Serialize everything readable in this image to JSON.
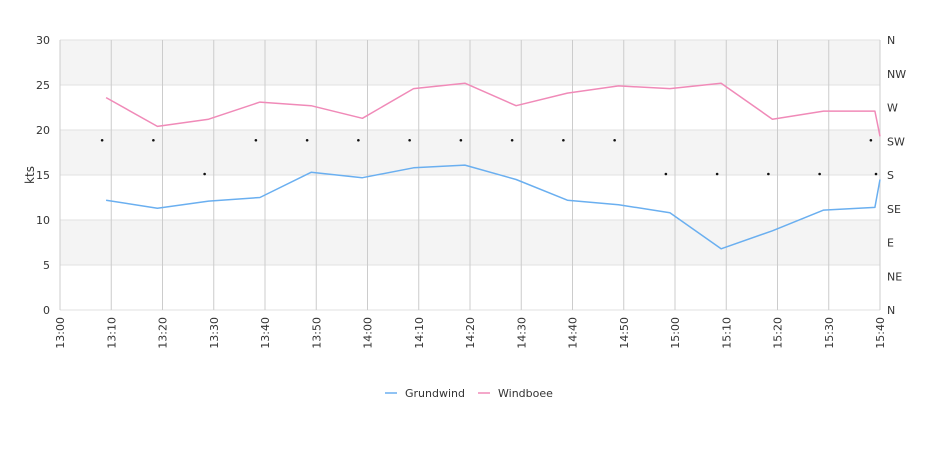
{
  "chart_data": {
    "type": "line",
    "xlabel": "",
    "ylabel": "kts",
    "ylim": [
      0,
      30
    ],
    "y_ticks": [
      "0",
      "5",
      "10",
      "15",
      "20",
      "25",
      "30"
    ],
    "x_ticks": [
      "13:00",
      "13:10",
      "13:20",
      "13:30",
      "13:40",
      "13:50",
      "14:00",
      "14:10",
      "14:20",
      "14:30",
      "14:40",
      "14:50",
      "15:00",
      "15:10",
      "15:20",
      "15:30",
      "15:40"
    ],
    "right_axis_ticks": [
      "N",
      "NE",
      "E",
      "SE",
      "S",
      "SW",
      "W",
      "NW",
      "N"
    ],
    "grid": true,
    "legend_position": "bottom",
    "series": [
      {
        "name": "Grundwind",
        "color": "#6aaff0",
        "x": [
          "13:09",
          "13:19",
          "13:29",
          "13:39",
          "13:49",
          "13:59",
          "14:09",
          "14:19",
          "14:29",
          "14:39",
          "14:49",
          "14:59",
          "15:09",
          "15:19",
          "15:29",
          "15:39",
          "15:40"
        ],
        "values": [
          12.2,
          11.3,
          12.1,
          12.5,
          15.3,
          14.7,
          15.8,
          16.1,
          14.5,
          12.2,
          11.7,
          10.8,
          6.8,
          8.8,
          11.1,
          11.4,
          14.5
        ]
      },
      {
        "name": "Windboee",
        "color": "#f08ab8",
        "x": [
          "13:09",
          "13:19",
          "13:29",
          "13:39",
          "13:49",
          "13:59",
          "14:09",
          "14:19",
          "14:29",
          "14:39",
          "14:49",
          "14:59",
          "15:09",
          "15:19",
          "15:29",
          "15:39",
          "15:40"
        ],
        "values": [
          23.6,
          20.4,
          21.2,
          23.1,
          22.7,
          21.3,
          24.6,
          25.2,
          22.7,
          24.1,
          24.9,
          24.6,
          25.2,
          21.2,
          22.1,
          22.1,
          19.3
        ]
      }
    ],
    "direction_markers": {
      "x": [
        "13:09",
        "13:19",
        "13:29",
        "13:39",
        "13:49",
        "13:59",
        "14:09",
        "14:19",
        "14:29",
        "14:39",
        "14:49",
        "14:59",
        "15:09",
        "15:19",
        "15:29",
        "15:39",
        "15:40"
      ],
      "values": [
        "SW",
        "SW",
        "S",
        "SW",
        "SW",
        "SW",
        "SW",
        "SW",
        "SW",
        "SW",
        "SW",
        "S",
        "S",
        "S",
        "S",
        "SW",
        "S"
      ]
    }
  }
}
